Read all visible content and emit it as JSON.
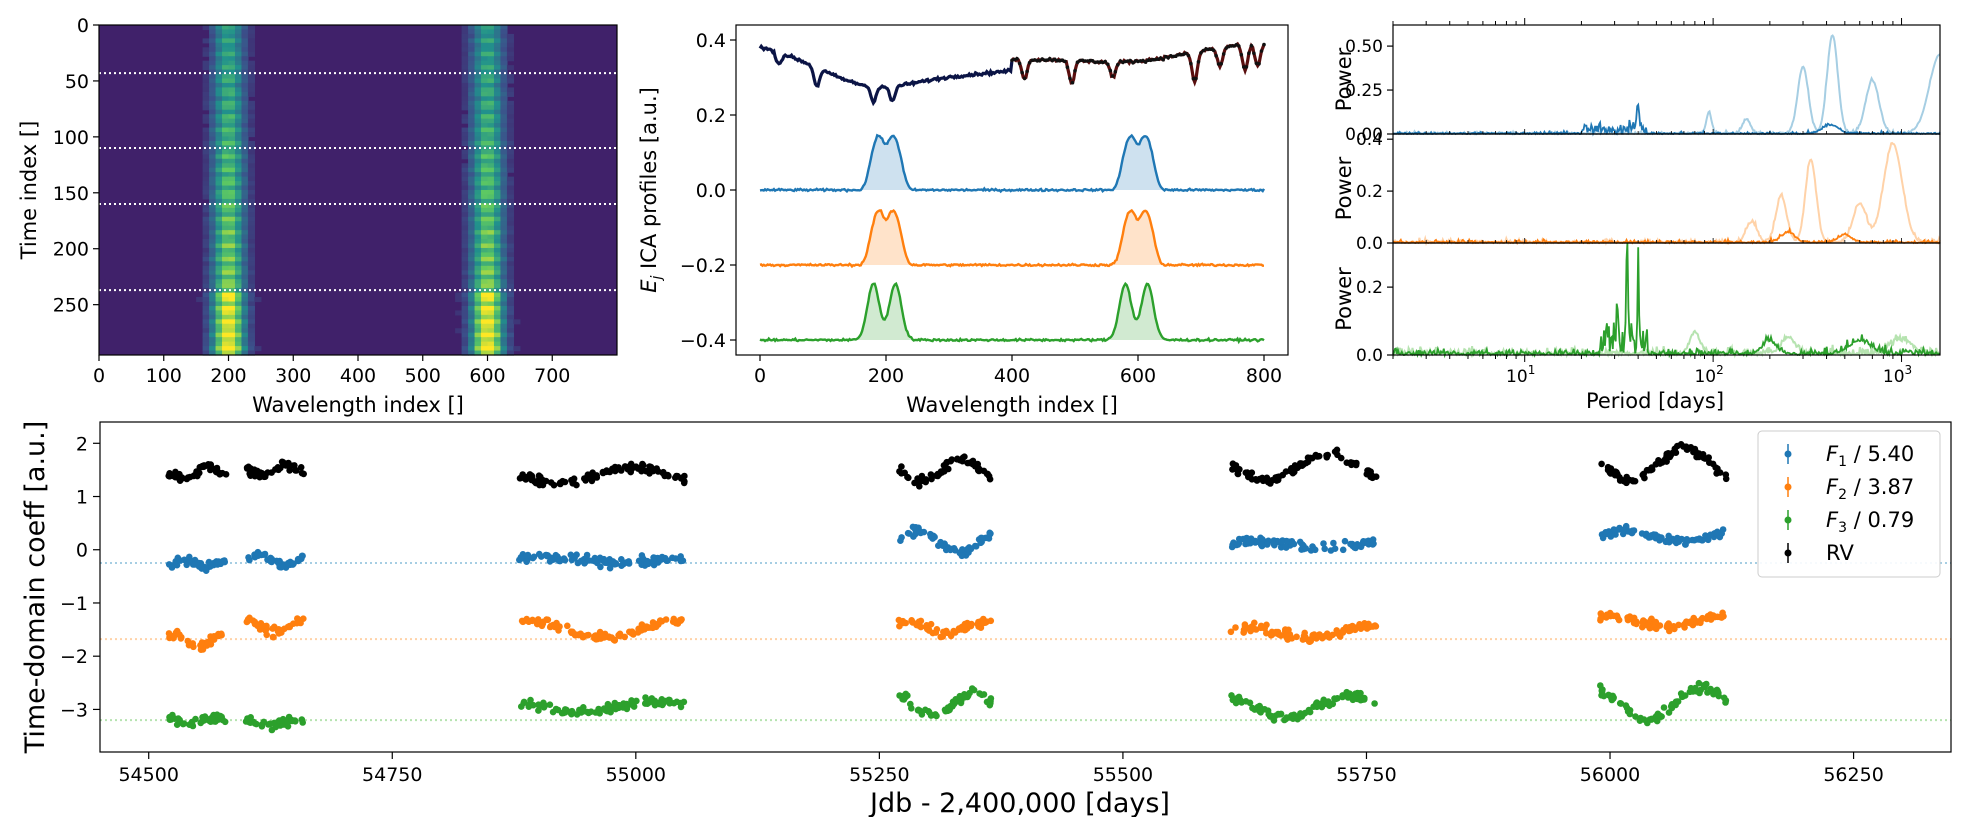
{
  "figure": {
    "colors": {
      "f1": "#1f77b4",
      "f2": "#ff7f0e",
      "f3": "#2ca02c",
      "rv": "#000000",
      "f1_light": "#a6cee3",
      "f2_light": "#ffd2a8",
      "f3_light": "#b6e3b0"
    }
  },
  "chart_data": [
    {
      "id": "heatmap",
      "type": "heatmap",
      "title": "",
      "xlabel": "Wavelength index []",
      "ylabel": "Time index []",
      "xlim": [
        0,
        800
      ],
      "ylim": [
        295,
        0
      ],
      "xticks": [
        "0",
        "100",
        "200",
        "300",
        "400",
        "500",
        "600",
        "700"
      ],
      "yticks": [
        "0",
        "50",
        "100",
        "150",
        "200",
        "250"
      ],
      "colormap": "viridis",
      "bright_bands_center": [
        200,
        600
      ],
      "bright_bands_halfwidth": 30,
      "horizontal_dividers_time_index": [
        43,
        110,
        160,
        237
      ]
    },
    {
      "id": "profiles",
      "type": "line",
      "xlabel": "Wavelength index []",
      "ylabel_symbol": "E",
      "ylabel_sub": "j",
      "ylabel_rest": " ICA profiles [a.u.]",
      "xlim": [
        0,
        800
      ],
      "ylim": [
        -0.44,
        0.44
      ],
      "xticks": [
        "0",
        "200",
        "400",
        "600",
        "800"
      ],
      "yticks": [
        "−0.4",
        "−0.2",
        "0.0",
        "0.2",
        "0.4"
      ],
      "series": [
        {
          "name": "mean spectrum",
          "offset": 0.35
        },
        {
          "name": "F1 profile",
          "offset": 0.0,
          "peak": 0.14,
          "peak_centers": [
            200,
            600
          ]
        },
        {
          "name": "F2 profile",
          "offset": -0.2,
          "peak": 0.14,
          "peak_centers": [
            200,
            600
          ]
        },
        {
          "name": "F3 profile",
          "offset": -0.4,
          "peak": 0.15,
          "peak_centers": [
            180,
            215,
            580,
            615
          ]
        }
      ]
    },
    {
      "id": "periodograms",
      "type": "line",
      "xlabel": "Period [days]",
      "xscale": "log",
      "xlim": [
        2,
        1600
      ],
      "xticks": [
        "10",
        "10",
        "10"
      ],
      "xtick_exponents": [
        "1",
        "2",
        "3"
      ],
      "panels": [
        {
          "ylabel": "Power",
          "ylim": [
            0,
            0.62
          ],
          "yticks": [
            "0.00",
            "0.25",
            "0.50"
          ],
          "peak_value": 0.56,
          "peak_period": 420
        },
        {
          "ylabel": "Power",
          "ylim": [
            0,
            0.42
          ],
          "yticks": [
            "0.0",
            "0.2",
            "0.4"
          ],
          "peak_value": 0.39,
          "peak_period": 900
        },
        {
          "ylabel": "Power",
          "ylim": [
            0,
            0.33
          ],
          "yticks": [
            "0.0",
            "0.2"
          ],
          "peak_value": 0.3,
          "peak_period": 35
        }
      ]
    },
    {
      "id": "timeseries",
      "type": "scatter",
      "xlabel": "Jdb - 2,400,000 [days]",
      "ylabel": "Time-domain coeff [a.u.]",
      "xlim": [
        54450,
        56350
      ],
      "ylim": [
        -3.8,
        2.4
      ],
      "xticks": [
        "54500",
        "54750",
        "55000",
        "55250",
        "55500",
        "55750",
        "56000",
        "56250"
      ],
      "yticks": [
        "−3",
        "−2",
        "−1",
        "0",
        "1",
        "2"
      ],
      "reference_levels": [
        -0.25,
        -1.68,
        -3.2
      ],
      "seasons": [
        [
          54520,
          54580
        ],
        [
          54600,
          54660
        ],
        [
          54880,
          55050
        ],
        [
          55270,
          55365
        ],
        [
          55610,
          55760
        ],
        [
          55990,
          56120
        ]
      ],
      "series": [
        {
          "name": "F",
          "sub": "1",
          "scale": " / 5.40",
          "baseline": -0.2
        },
        {
          "name": "F",
          "sub": "2",
          "scale": " / 3.87",
          "baseline": -1.55
        },
        {
          "name": "F",
          "sub": "3",
          "scale": " / 0.79",
          "baseline": -3.05
        },
        {
          "name": "RV",
          "sub": "",
          "scale": "",
          "baseline": 1.45
        }
      ]
    }
  ]
}
